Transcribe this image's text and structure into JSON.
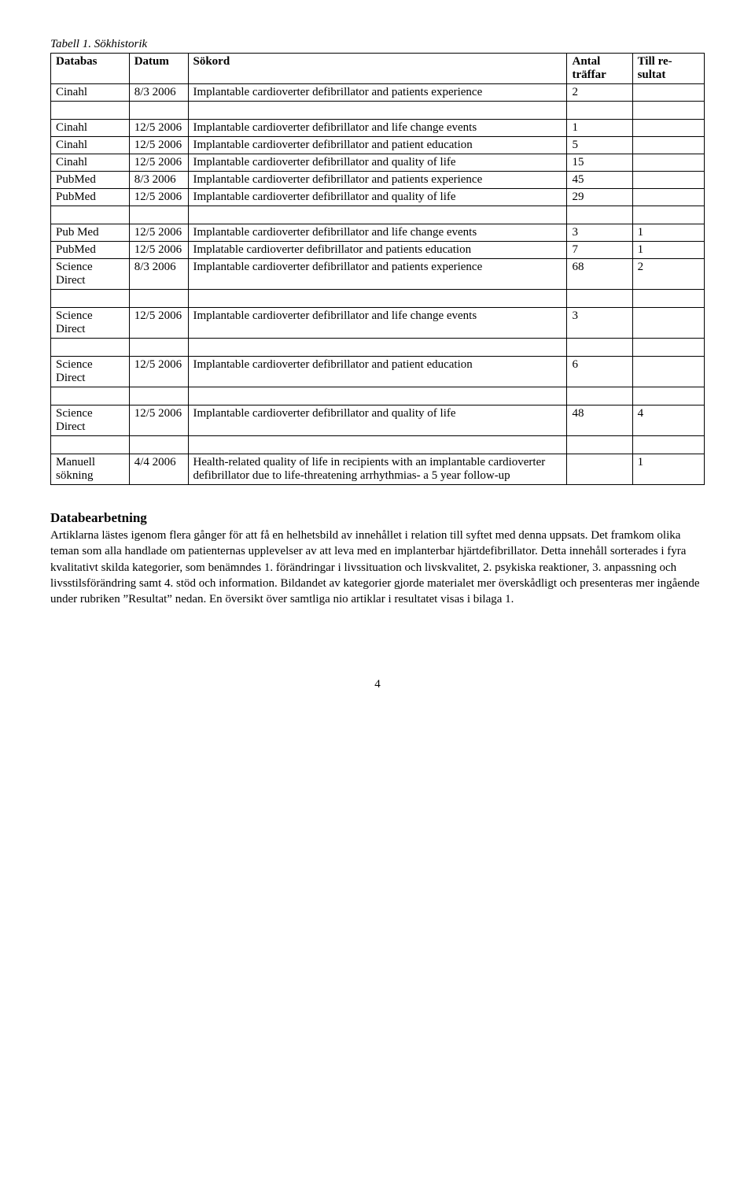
{
  "caption": "Tabell 1. Sökhistorik",
  "headers": {
    "databas": "Databas",
    "datum": "Datum",
    "sokord": "Sökord",
    "antal": "Antal träffar",
    "resultat": "Till re-sultat"
  },
  "rows": {
    "r1": {
      "db": "Cinahl",
      "date": "8/3 2006",
      "sokord": "Implantable cardioverter defibrillator and patients experience",
      "antal": "2",
      "res": ""
    },
    "r2": {
      "db": "Cinahl",
      "date": "12/5 2006",
      "sokord": "Implantable cardioverter defibrillator and life change events",
      "antal": "1",
      "res": ""
    },
    "r3": {
      "db": "Cinahl",
      "date": "12/5 2006",
      "sokord": "Implantable cardioverter defibrillator and patient education",
      "antal": "5",
      "res": ""
    },
    "r4": {
      "db": "Cinahl",
      "date": "12/5 2006",
      "sokord": "Implantable cardioverter defibrillator and quality of life",
      "antal": "15",
      "res": ""
    },
    "r5": {
      "db": "PubMed",
      "date": "8/3 2006",
      "sokord": "Implantable cardioverter defibrillator and patients experience",
      "antal": "45",
      "res": ""
    },
    "r6": {
      "db": "PubMed",
      "date": "12/5 2006",
      "sokord": "Implantable cardioverter defibrillator and quality of life",
      "antal": "29",
      "res": ""
    },
    "r7": {
      "db": "Pub Med",
      "date": "12/5 2006",
      "sokord": "Implantable cardioverter defibrillator and life change events",
      "antal": "3",
      "res": "1"
    },
    "r8": {
      "db": "PubMed",
      "date": "12/5 2006",
      "sokord": "Implatable cardioverter defibrillator and patients education",
      "antal": "7",
      "res": "1"
    },
    "r9": {
      "db": "Science Direct",
      "date": "8/3 2006",
      "sokord": "Implantable cardioverter defibrillator and patients experience",
      "antal": "68",
      "res": "2"
    },
    "r10": {
      "db": "Science Direct",
      "date": "12/5 2006",
      "sokord": "Implantable cardioverter defibrillator and life change events",
      "antal": "3",
      "res": ""
    },
    "r11": {
      "db": "Science Direct",
      "date": "12/5 2006",
      "sokord": "Implantable cardioverter defibrillator and patient education",
      "antal": "6",
      "res": ""
    },
    "r12": {
      "db": "Science Direct",
      "date": "12/5 2006",
      "sokord": "Implantable cardioverter defibrillator and quality of life",
      "antal": "48",
      "res": "4"
    },
    "r13": {
      "db": "Manuell sökning",
      "date": "4/4 2006",
      "sokord": "Health-related quality of life in recipients with an implantable cardioverter defibrillator due to life-threatening arrhythmias- a 5 year follow-up",
      "antal": "",
      "res": "1"
    }
  },
  "section_heading": "Databearbetning",
  "body_text": "Artiklarna lästes igenom flera gånger för att få en helhetsbild av innehållet i relation till syftet med denna uppsats. Det framkom olika teman som alla handlade om patienternas upplevelser av att leva med en implanterbar hjärtdefibrillator. Detta innehåll sorterades i fyra kvalitativt skilda kategorier, som benämndes 1. förändringar i livssituation och livskvalitet, 2. psykiska reaktioner, 3. anpassning och livsstilsförändring samt 4. stöd och information. Bildandet av kategorier gjorde materialet mer överskådligt och presenteras mer ingående under rubriken ”Resultat” nedan. En översikt över samtliga nio artiklar i resultatet visas i bilaga 1.",
  "page_number": "4"
}
